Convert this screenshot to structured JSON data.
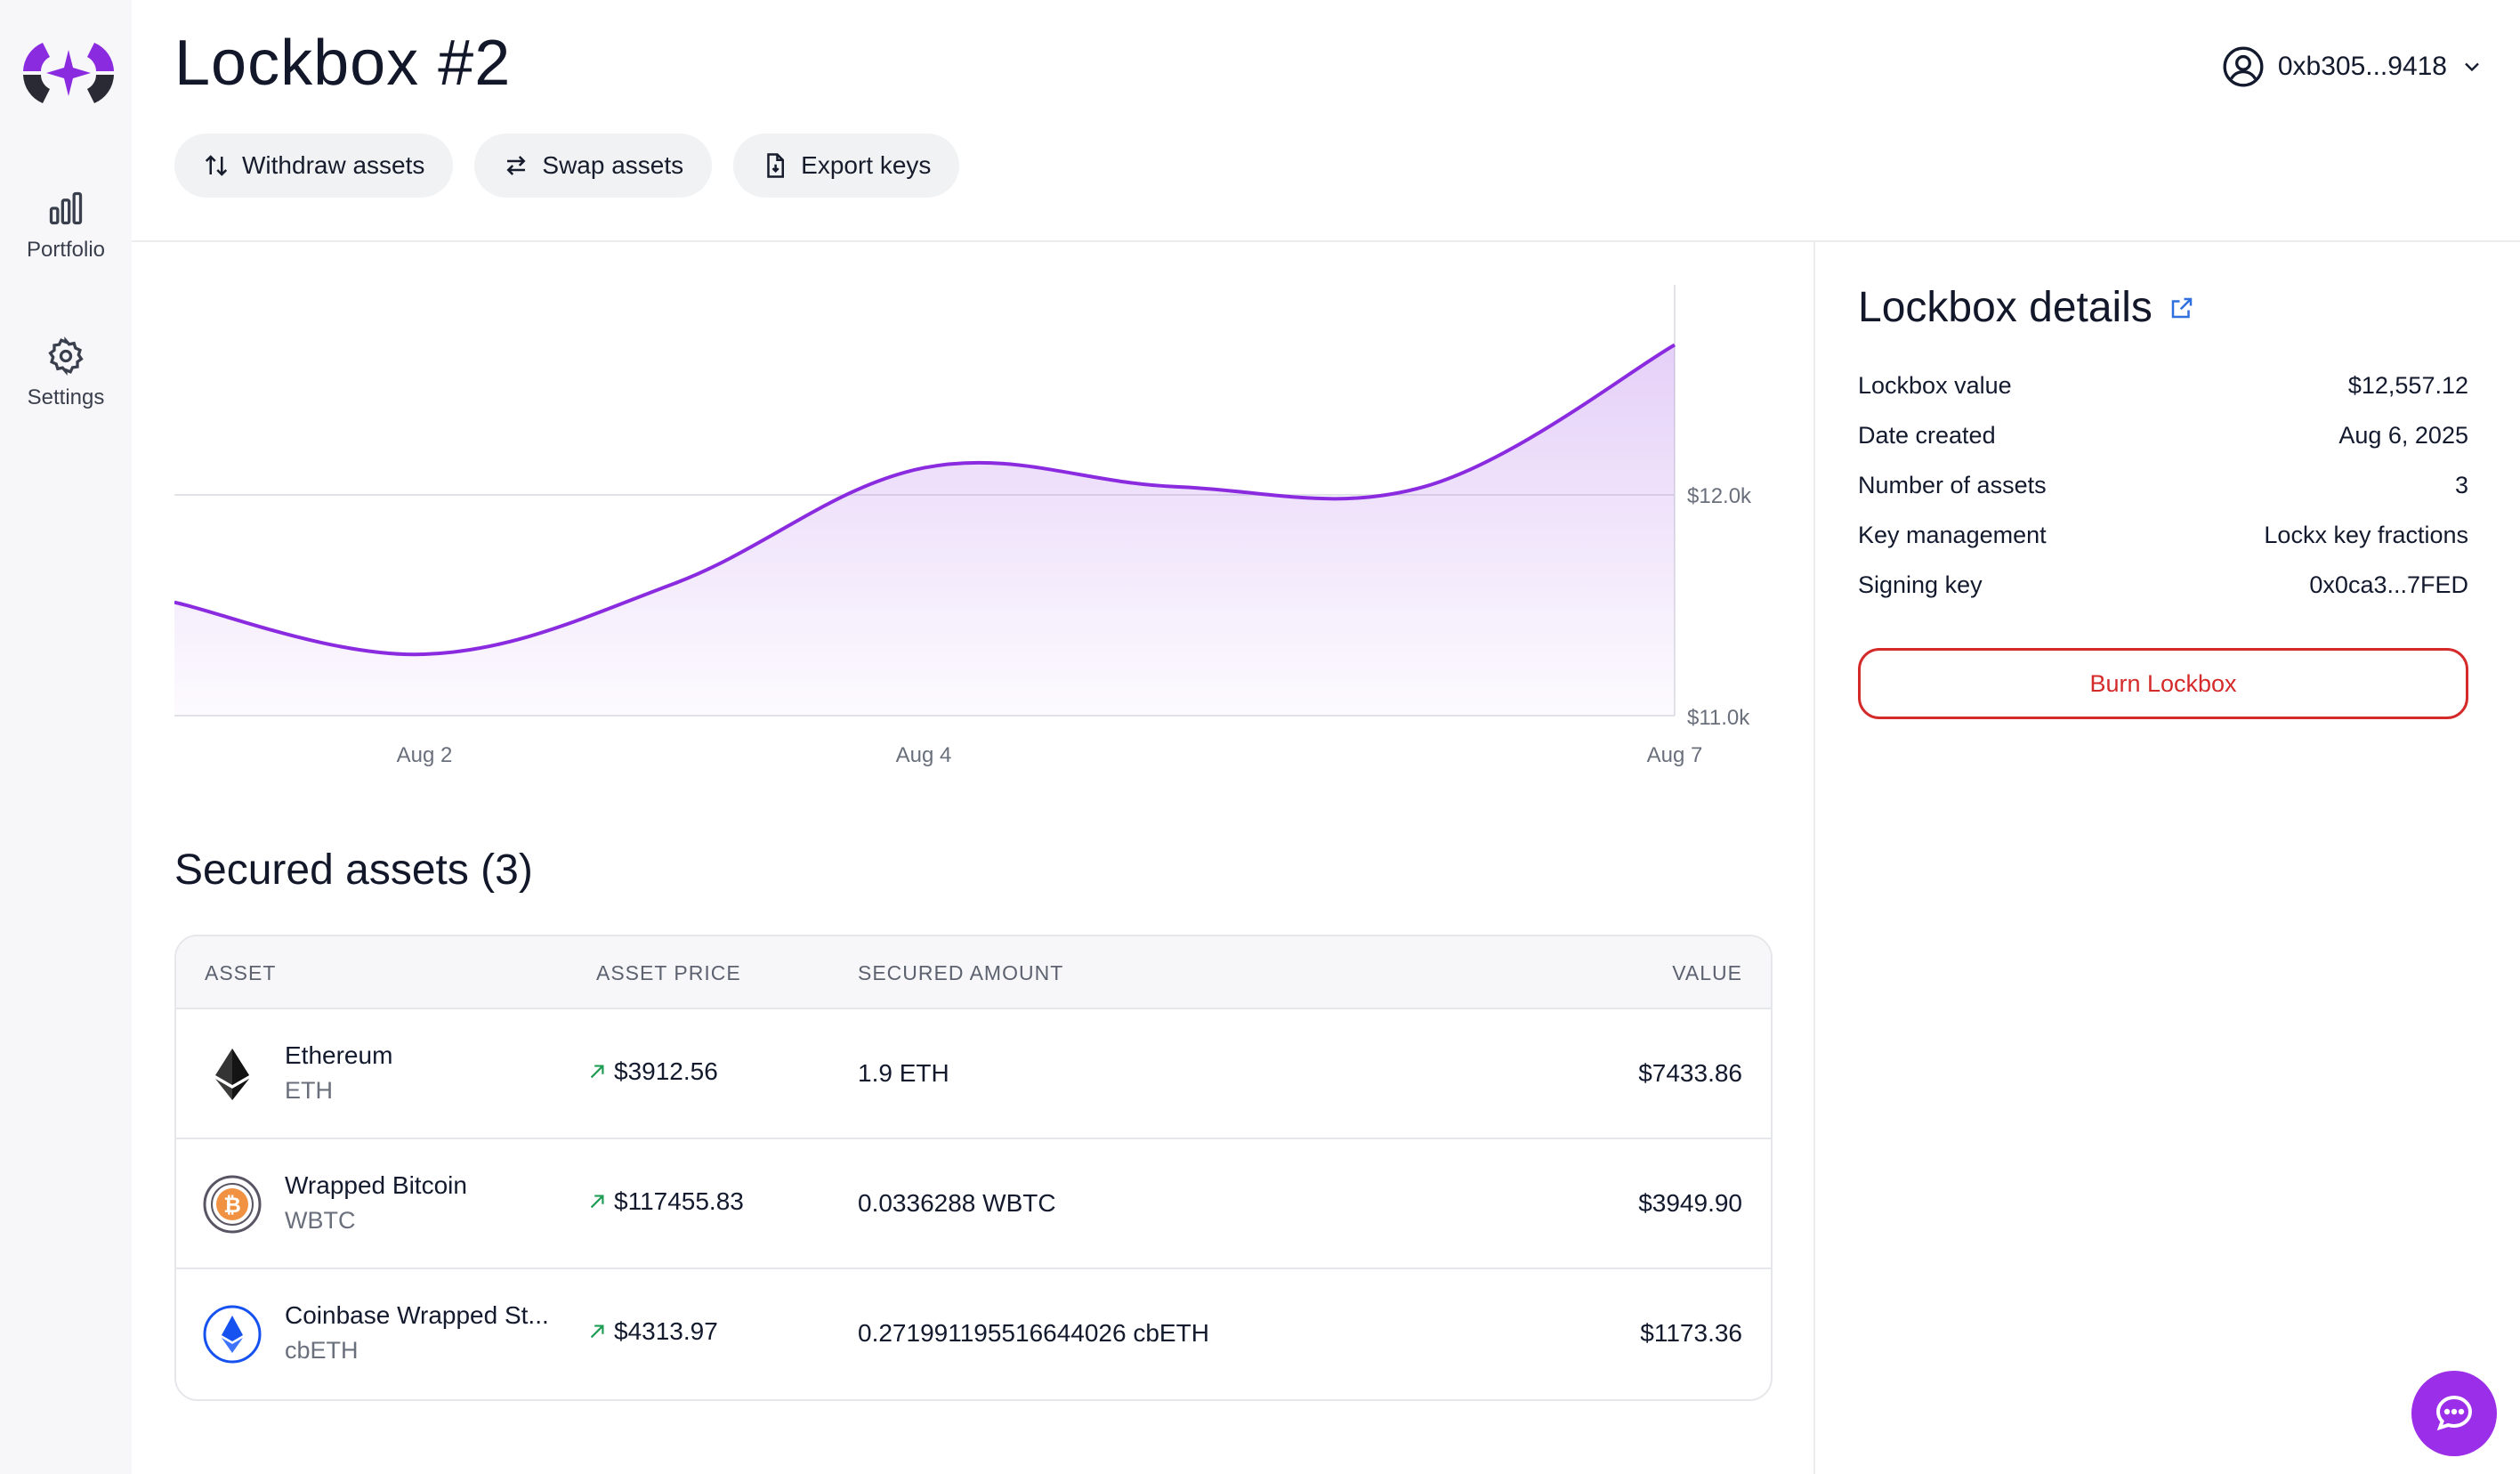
{
  "sidebar": {
    "logo": "lockx-logo",
    "items": [
      {
        "label": "Portfolio",
        "icon": "bar-chart-icon"
      },
      {
        "label": "Settings",
        "icon": "gear-icon"
      }
    ]
  },
  "header": {
    "title": "Lockbox #2",
    "account": "0xb305...9418",
    "actions": [
      {
        "label": "Withdraw assets",
        "icon": "arrows-up-down-icon"
      },
      {
        "label": "Swap assets",
        "icon": "swap-arrows-icon"
      },
      {
        "label": "Export keys",
        "icon": "file-export-icon"
      }
    ]
  },
  "chart_data": {
    "type": "area",
    "x": [
      "Aug 1",
      "Aug 2",
      "Aug 3",
      "Aug 4",
      "Aug 5",
      "Aug 6",
      "Aug 7"
    ],
    "values": [
      11480,
      11260,
      11560,
      12050,
      11970,
      11970,
      12570
    ],
    "xticks": [
      "Aug 2",
      "Aug 4",
      "Aug 7"
    ],
    "yticks": [
      "$12.0k",
      "$11.0k"
    ],
    "ylim": [
      11000,
      12900
    ],
    "color": "#8b2be0"
  },
  "assets": {
    "title": "Secured assets (3)",
    "columns": [
      "ASSET",
      "ASSET PRICE",
      "SECURED AMOUNT",
      "VALUE"
    ],
    "rows": [
      {
        "name": "Ethereum",
        "symbol": "ETH",
        "price": "$3912.56",
        "amount": "1.9 ETH",
        "value": "$7433.86",
        "icon": "ethereum-icon"
      },
      {
        "name": "Wrapped Bitcoin",
        "symbol": "WBTC",
        "price": "$117455.83",
        "amount": "0.0336288 WBTC",
        "value": "$3949.90",
        "icon": "wrapped-bitcoin-icon"
      },
      {
        "name": "Coinbase Wrapped St...",
        "symbol": "cbETH",
        "price": "$4313.97",
        "amount": "0.271991195516644026 cbETH",
        "value": "$1173.36",
        "icon": "cbeth-icon"
      }
    ]
  },
  "details": {
    "title": "Lockbox details",
    "rows": [
      {
        "label": "Lockbox value",
        "value": "$12,557.12"
      },
      {
        "label": "Date created",
        "value": "Aug 6, 2025"
      },
      {
        "label": "Number of assets",
        "value": "3"
      },
      {
        "label": "Key management",
        "value": "Lockx key fractions"
      },
      {
        "label": "Signing key",
        "value": "0x0ca3...7FED"
      }
    ],
    "burn_label": "Burn Lockbox"
  },
  "colors": {
    "accent": "#8b2be0",
    "danger": "#d42a2a",
    "up": "#1f9d55"
  }
}
